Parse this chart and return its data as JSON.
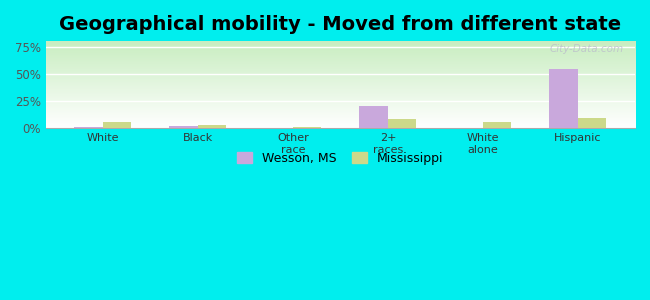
{
  "title": "Geographical mobility - Moved from different state",
  "categories": [
    "White",
    "Black",
    "Other\nrace",
    "2+\nraces",
    "White\nalone",
    "Hispanic"
  ],
  "wesson_values": [
    0.8,
    2.2,
    0.0,
    20.0,
    0.0,
    54.0
  ],
  "mississippi_values": [
    5.5,
    2.5,
    1.5,
    8.0,
    5.5,
    9.5
  ],
  "wesson_color": "#c9a8dc",
  "mississippi_color": "#ccd98a",
  "ylim": [
    0,
    80
  ],
  "yticks": [
    0,
    25,
    50,
    75
  ],
  "ytick_labels": [
    "0%",
    "25%",
    "50%",
    "75%"
  ],
  "background_color": "#00eeee",
  "grad_top_color": "#c8edc0",
  "grad_bottom_color": "#ffffff",
  "watermark": "City-Data.com",
  "legend_wesson": "Wesson, MS",
  "legend_mississippi": "Mississippi",
  "title_fontsize": 14,
  "bar_width": 0.3
}
